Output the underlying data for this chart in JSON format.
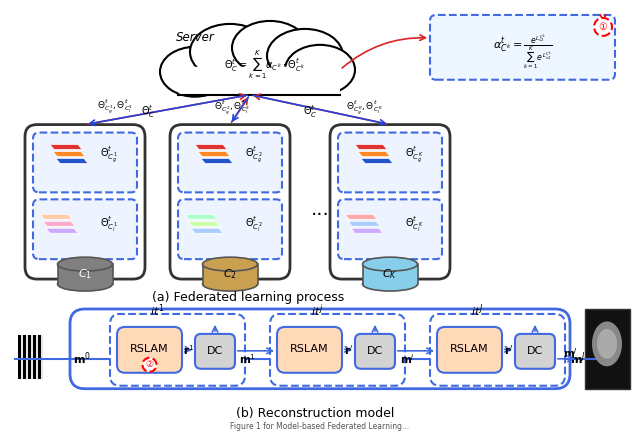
{
  "title": "",
  "bg_color": "#ffffff",
  "part_a_label": "(a) Federated learning process",
  "part_b_label": "(b) Reconstruction model",
  "server_text": "Server",
  "server_formula": "Θ_C^t = Σ α_{C^k}·Θ_{C^k}^t",
  "softmax_formula": "α_{C^k}^t = e^{L_{s2}^{C^k}} / Σe^{L_{s2}^{C^k}}",
  "client_labels": [
    "C_1",
    "C_2",
    "C_K"
  ],
  "client_colors": [
    "#808080",
    "#c8a84b",
    "#87CEEB"
  ],
  "arrow_color_red": "#ff0000",
  "arrow_color_blue": "#4169E1",
  "rslam_color": "#FFDAB9",
  "dc_color": "#D3D3D3",
  "box_border_blue": "#4169E1",
  "box_border_dark": "#2F4F4F"
}
